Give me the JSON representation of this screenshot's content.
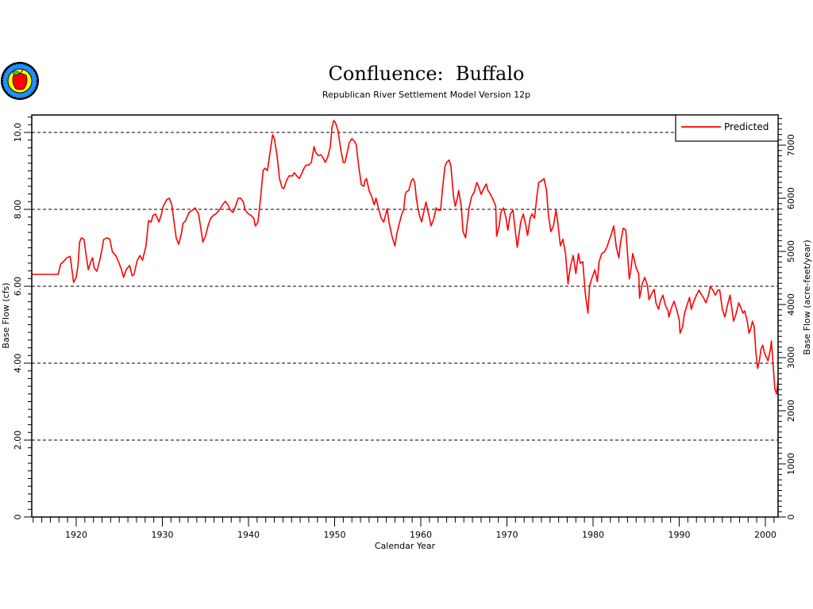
{
  "chart_data": {
    "type": "line",
    "title": "Confluence:  Buffalo",
    "subtitle": "Republican River Settlement Model Version 12p",
    "xlabel": "Calendar Year",
    "ylabel": "Base Flow (cfs)",
    "y2label": "Base Flow (acre-feet/year)",
    "xlim": [
      1914.8,
      2001.6
    ],
    "ylim": [
      0,
      10.45
    ],
    "y2_factor_acre_feet_per_cfs": 724,
    "x_ticks": [
      "1920",
      "1930",
      "1940",
      "1950",
      "1960",
      "1970",
      "1980",
      "1990",
      "2000"
    ],
    "y_ticks": [
      "0",
      "2.00",
      "4.00",
      "6.00",
      "8.00",
      "10.0"
    ],
    "y2_ticks": [
      "0",
      "1000",
      "2000",
      "3000",
      "4000",
      "5000",
      "6000",
      "7000"
    ],
    "grid": "horizontal dashed at 2,4,6,8,10",
    "legend": {
      "position": "top-right",
      "entries": [
        "Predicted"
      ]
    },
    "series": [
      {
        "name": "Predicted",
        "color": "#ff0000",
        "x": [
          1914.8,
          1917.9,
          1918.2,
          1918.5,
          1918.9,
          1919.3,
          1919.5,
          1919.7,
          1920.0,
          1920.2,
          1920.4,
          1920.6,
          1920.9,
          1921.1,
          1921.4,
          1921.7,
          1921.9,
          1922.1,
          1922.4,
          1922.8,
          1923.2,
          1923.6,
          1923.9,
          1924.2,
          1924.6,
          1924.9,
          1925.2,
          1925.5,
          1925.8,
          1926.2,
          1926.5,
          1926.7,
          1927.1,
          1927.4,
          1927.7,
          1928.1,
          1928.4,
          1928.7,
          1928.9,
          1929.2,
          1929.6,
          1929.9,
          1930.1,
          1930.5,
          1930.8,
          1931.1,
          1931.3,
          1931.6,
          1931.9,
          1932.2,
          1932.4,
          1932.7,
          1933.1,
          1933.5,
          1933.8,
          1934.2,
          1934.5,
          1934.7,
          1935.0,
          1935.3,
          1935.6,
          1935.9,
          1936.2,
          1936.6,
          1937.0,
          1937.3,
          1937.6,
          1937.9,
          1938.2,
          1938.5,
          1938.8,
          1939.1,
          1939.4,
          1939.6,
          1940.0,
          1940.3,
          1940.6,
          1940.8,
          1941.1,
          1941.4,
          1941.7,
          1941.9,
          1942.2,
          1942.4,
          1942.8,
          1943.0,
          1943.3,
          1943.6,
          1943.9,
          1944.1,
          1944.4,
          1944.7,
          1945.1,
          1945.3,
          1945.6,
          1945.9,
          1946.2,
          1946.5,
          1946.7,
          1947.0,
          1947.3,
          1947.6,
          1947.8,
          1948.1,
          1948.4,
          1948.7,
          1948.9,
          1949.2,
          1949.5,
          1949.7,
          1949.9,
          1950.1,
          1950.4,
          1950.7,
          1951.0,
          1951.2,
          1951.4,
          1951.7,
          1952.0,
          1952.3,
          1952.5,
          1952.8,
          1953.1,
          1953.4,
          1953.5,
          1953.7,
          1954.0,
          1954.3,
          1954.6,
          1954.8,
          1955.1,
          1955.4,
          1955.7,
          1955.9,
          1956.1,
          1956.3,
          1956.7,
          1957.0,
          1957.2,
          1957.5,
          1957.8,
          1958.0,
          1958.2,
          1958.3,
          1958.6,
          1958.9,
          1959.1,
          1959.3,
          1959.5,
          1959.8,
          1960.1,
          1960.4,
          1960.6,
          1960.9,
          1961.2,
          1961.5,
          1961.8,
          1962.0,
          1962.3,
          1962.5,
          1962.8,
          1963.0,
          1963.3,
          1963.5,
          1963.8,
          1964.0,
          1964.2,
          1964.4,
          1964.7,
          1964.9,
          1965.2,
          1965.3,
          1965.6,
          1965.9,
          1966.2,
          1966.5,
          1966.7,
          1967.0,
          1967.3,
          1967.6,
          1967.8,
          1968.1,
          1968.4,
          1968.7,
          1968.8,
          1969.1,
          1969.3,
          1969.6,
          1969.9,
          1970.1,
          1970.4,
          1970.7,
          1970.9,
          1971.2,
          1971.4,
          1971.6,
          1971.9,
          1972.2,
          1972.4,
          1972.7,
          1972.9,
          1973.2,
          1973.5,
          1973.7,
          1974.0,
          1974.3,
          1974.6,
          1974.8,
          1975.1,
          1975.4,
          1975.7,
          1975.9,
          1976.2,
          1976.5,
          1976.8,
          1977.1,
          1977.2,
          1977.4,
          1977.7,
          1978.0,
          1978.3,
          1978.5,
          1978.8,
          1979.1,
          1979.4,
          1979.6,
          1979.9,
          1980.2,
          1980.5,
          1980.7,
          1981.0,
          1981.3,
          1981.6,
          1981.8,
          1982.1,
          1982.4,
          1982.7,
          1983.0,
          1983.2,
          1983.5,
          1983.8,
          1984.0,
          1984.2,
          1984.4,
          1984.6,
          1984.8,
          1985.0,
          1985.3,
          1985.4,
          1985.7,
          1986.0,
          1986.3,
          1986.5,
          1986.8,
          1987.1,
          1987.3,
          1987.6,
          1987.8,
          1988.1,
          1988.4,
          1988.7,
          1988.8,
          1989.1,
          1989.4,
          1989.7,
          1990.0,
          1990.1,
          1990.4,
          1990.6,
          1990.9,
          1991.2,
          1991.4,
          1991.7,
          1992.0,
          1992.3,
          1992.5,
          1992.8,
          1993.1,
          1993.4,
          1993.6,
          1993.9,
          1994.2,
          1994.5,
          1994.7,
          1995.0,
          1995.3,
          1995.6,
          1995.9,
          1996.1,
          1996.3,
          1996.6,
          1996.9,
          1997.1,
          1997.4,
          1997.6,
          1997.9,
          1998.1,
          1998.3,
          1998.5,
          1998.7,
          1998.9,
          1999.1,
          1999.3,
          1999.5,
          1999.7,
          1999.9,
          2000.1,
          2000.3,
          2000.6,
          2000.7,
          2000.9,
          2001.1,
          2001.3,
          2001.5
        ],
        "y": [
          6.31,
          6.31,
          6.58,
          6.64,
          6.74,
          6.78,
          6.43,
          6.1,
          6.23,
          6.54,
          7.15,
          7.26,
          7.22,
          6.89,
          6.43,
          6.64,
          6.74,
          6.47,
          6.39,
          6.74,
          7.22,
          7.26,
          7.22,
          6.89,
          6.8,
          6.64,
          6.47,
          6.23,
          6.43,
          6.54,
          6.27,
          6.31,
          6.68,
          6.8,
          6.68,
          7.05,
          7.71,
          7.67,
          7.84,
          7.88,
          7.67,
          7.88,
          8.08,
          8.25,
          8.29,
          8.12,
          7.77,
          7.26,
          7.09,
          7.36,
          7.63,
          7.71,
          7.92,
          7.98,
          8.04,
          7.88,
          7.46,
          7.15,
          7.3,
          7.57,
          7.77,
          7.84,
          7.88,
          7.98,
          8.12,
          8.21,
          8.12,
          7.98,
          7.92,
          8.08,
          8.29,
          8.29,
          8.19,
          7.98,
          7.88,
          7.84,
          7.77,
          7.57,
          7.67,
          8.29,
          9.01,
          9.07,
          9.01,
          9.32,
          9.94,
          9.84,
          9.42,
          8.8,
          8.56,
          8.54,
          8.74,
          8.87,
          8.87,
          8.95,
          8.87,
          8.8,
          8.95,
          9.09,
          9.15,
          9.15,
          9.22,
          9.63,
          9.48,
          9.4,
          9.42,
          9.32,
          9.22,
          9.36,
          9.63,
          10.14,
          10.31,
          10.25,
          10.04,
          9.57,
          9.22,
          9.22,
          9.42,
          9.73,
          9.84,
          9.77,
          9.69,
          9.11,
          8.64,
          8.6,
          8.74,
          8.8,
          8.49,
          8.33,
          8.12,
          8.29,
          8.02,
          7.77,
          7.67,
          7.84,
          8.02,
          7.67,
          7.26,
          7.05,
          7.34,
          7.63,
          7.88,
          7.98,
          8.39,
          8.45,
          8.49,
          8.74,
          8.8,
          8.7,
          8.25,
          7.88,
          7.67,
          7.98,
          8.19,
          7.88,
          7.57,
          7.75,
          8.04,
          7.98,
          7.98,
          8.49,
          9.11,
          9.22,
          9.28,
          9.11,
          8.33,
          8.08,
          8.25,
          8.49,
          8.08,
          7.42,
          7.26,
          7.46,
          8.04,
          8.33,
          8.45,
          8.7,
          8.6,
          8.39,
          8.54,
          8.66,
          8.49,
          8.39,
          8.25,
          8.08,
          7.3,
          7.57,
          7.92,
          8.04,
          7.77,
          7.46,
          7.88,
          7.98,
          7.57,
          7.01,
          7.34,
          7.67,
          7.88,
          7.57,
          7.32,
          7.77,
          7.88,
          7.77,
          8.39,
          8.7,
          8.74,
          8.8,
          8.49,
          7.88,
          7.42,
          7.57,
          7.98,
          7.67,
          7.05,
          7.22,
          6.85,
          6.06,
          6.27,
          6.54,
          6.8,
          6.33,
          6.85,
          6.6,
          6.64,
          5.81,
          5.3,
          6.02,
          6.23,
          6.43,
          6.12,
          6.64,
          6.85,
          6.89,
          7.01,
          7.15,
          7.34,
          7.57,
          7.01,
          6.74,
          7.15,
          7.51,
          7.46,
          6.85,
          6.19,
          6.43,
          6.85,
          6.68,
          6.47,
          6.33,
          5.69,
          6.06,
          6.23,
          6.02,
          5.65,
          5.81,
          5.92,
          5.57,
          5.4,
          5.61,
          5.77,
          5.51,
          5.36,
          5.2,
          5.44,
          5.61,
          5.4,
          5.13,
          4.78,
          4.95,
          5.28,
          5.51,
          5.71,
          5.4,
          5.61,
          5.77,
          5.9,
          5.81,
          5.71,
          5.57,
          5.77,
          6.0,
          5.9,
          5.77,
          5.9,
          5.9,
          5.4,
          5.2,
          5.51,
          5.77,
          5.44,
          5.09,
          5.28,
          5.57,
          5.48,
          5.3,
          5.36,
          5.09,
          4.78,
          4.89,
          5.09,
          4.95,
          4.27,
          3.86,
          4.06,
          4.37,
          4.47,
          4.27,
          4.16,
          4.06,
          4.37,
          4.58,
          3.96,
          3.34,
          3.2,
          3.55
        ]
      }
    ]
  },
  "logo": {
    "name": "apple-seal-logo",
    "colors": {
      "ring": "#1e90ff",
      "inner": "#ffff00",
      "apple": "#ff0000",
      "leaf": "#33cc33"
    }
  }
}
